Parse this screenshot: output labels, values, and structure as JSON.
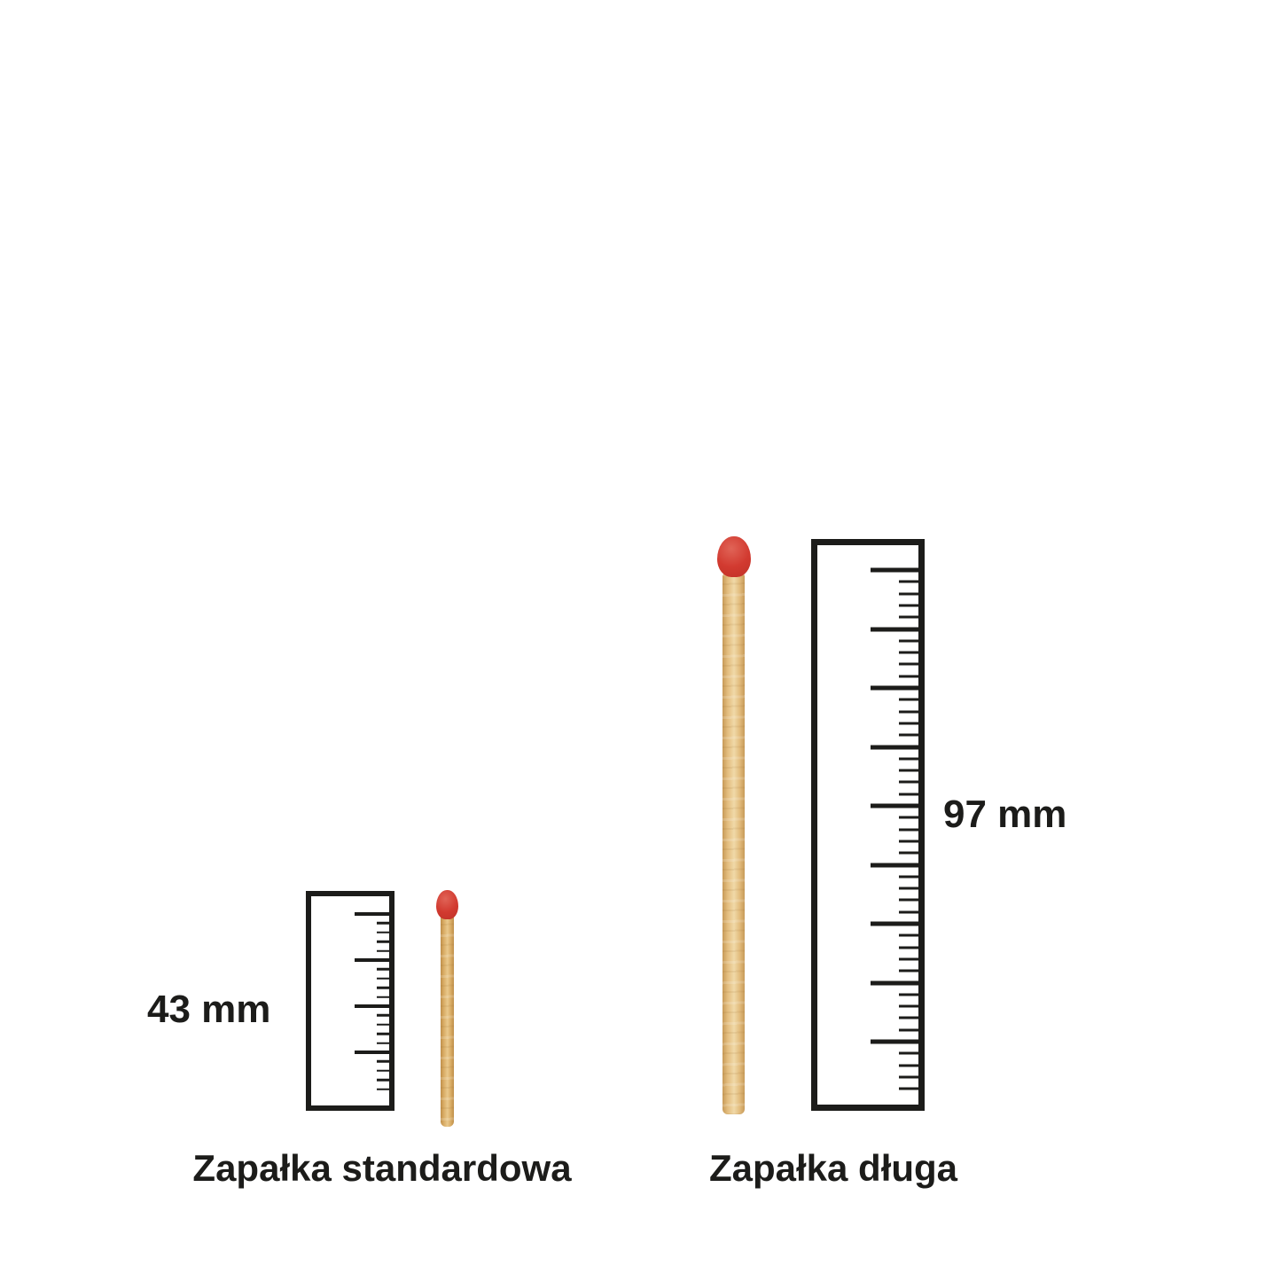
{
  "figure": {
    "title": "match-size-comparison",
    "colors": {
      "background": "#ffffff",
      "ink": "#1c1c1a"
    },
    "items": [
      {
        "name": "standard",
        "caption": "Zapałka standardowa",
        "measurement": "43 mm",
        "length_mm": 43,
        "ruler": {
          "major_ticks": 4,
          "minor_ticks_per_interval": 4
        },
        "match_colors": {
          "head": "#d23a30",
          "wood_light": "#e9c88c",
          "wood_mid": "#d8ab63",
          "wood_dark": "#bf8f4a"
        }
      },
      {
        "name": "long",
        "caption": "Zapałka długa",
        "measurement": "97 mm",
        "length_mm": 97,
        "ruler": {
          "major_ticks": 9,
          "minor_ticks_per_interval": 4
        },
        "match_colors": {
          "head": "#d23a30",
          "wood_light": "#f0d9a8",
          "wood_mid": "#e2bb7c",
          "wood_dark": "#c79a58"
        }
      }
    ]
  }
}
